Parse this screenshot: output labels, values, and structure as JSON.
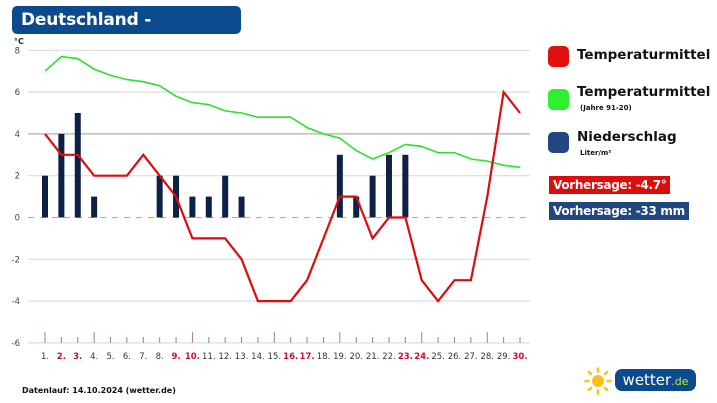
{
  "header": {
    "title": "Deutschland - November"
  },
  "chart_data": {
    "type": "line+bar",
    "title": "Deutschland - November",
    "ylabel": "°C",
    "ylim": [
      -6,
      8
    ],
    "yticks": [
      8,
      6,
      4,
      2,
      0,
      -2,
      -4,
      -6
    ],
    "categories": [
      "1.",
      "2.",
      "3.",
      "4.",
      "5.",
      "6.",
      "7.",
      "8.",
      "9.",
      "10.",
      "11.",
      "12.",
      "13.",
      "14.",
      "15.",
      "16.",
      "17.",
      "18.",
      "19.",
      "20.",
      "21.",
      "22.",
      "23.",
      "24.",
      "25.",
      "26.",
      "27.",
      "28.",
      "29.",
      "30."
    ],
    "highlighted_days": [
      2,
      3,
      9,
      10,
      16,
      17,
      23,
      24,
      30
    ],
    "series": [
      {
        "name": "Temperaturmittel",
        "type": "line",
        "color": "#dd0d0d",
        "values": [
          4,
          3,
          3,
          2,
          2,
          2,
          3,
          2,
          1,
          -1,
          -1,
          -1,
          -2,
          -4,
          -4,
          -4,
          -3,
          -1,
          1,
          1,
          -1,
          0,
          0,
          -3,
          -4,
          -3,
          -3,
          1,
          6,
          5
        ]
      },
      {
        "name": "Temperaturmittel (Jahre 91-20)",
        "type": "line",
        "color": "#2ee02e",
        "values": [
          7.0,
          7.7,
          7.6,
          7.1,
          6.8,
          6.6,
          6.5,
          6.3,
          5.8,
          5.5,
          5.4,
          5.1,
          5.0,
          4.8,
          4.8,
          4.8,
          4.3,
          4.0,
          3.8,
          3.2,
          2.8,
          3.1,
          3.5,
          3.4,
          3.1,
          3.1,
          2.8,
          2.7,
          2.5,
          2.4
        ]
      },
      {
        "name": "Niederschlag Liter/m²",
        "type": "bar",
        "color": "#0d2046",
        "values": [
          2,
          4,
          5,
          1,
          0,
          0,
          0,
          2,
          2,
          1,
          1,
          2,
          1,
          0,
          0,
          0,
          0,
          0,
          3,
          1,
          2,
          3,
          3,
          0,
          0,
          0,
          0,
          0,
          0,
          0
        ]
      }
    ],
    "legend_position": "right",
    "grid": true
  },
  "legend": {
    "items": [
      {
        "label": "Temperaturmittel",
        "sub": "",
        "color": "#e01010"
      },
      {
        "label": "Temperaturmittel",
        "sub": "(Jahre 91-20)",
        "color": "#2ef02e"
      },
      {
        "label": "Niederschlag",
        "sub": "Liter/m²",
        "color": "#22467e"
      }
    ]
  },
  "forecast": {
    "temp": {
      "label": "Vorhersage: -4.7°",
      "color": "#dd0d0d"
    },
    "precip": {
      "label": "Vorhersage: -33 mm",
      "color": "#22467e"
    }
  },
  "footer": {
    "text": "Datenlauf: 14.10.2024 (wetter.de)"
  },
  "logo": {
    "main": "wetter",
    "tld": ".de"
  }
}
